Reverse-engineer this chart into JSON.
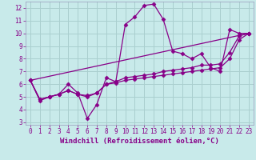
{
  "title": "",
  "xlabel": "Windchill (Refroidissement éolien,°C)",
  "ylabel": "",
  "bg_color": "#c8eaea",
  "grid_color": "#aacfcf",
  "line_color": "#880088",
  "xlim": [
    -0.5,
    23.5
  ],
  "ylim": [
    2.8,
    12.5
  ],
  "xticks": [
    0,
    1,
    2,
    3,
    4,
    5,
    6,
    7,
    8,
    9,
    10,
    11,
    12,
    13,
    14,
    15,
    16,
    17,
    18,
    19,
    20,
    21,
    22,
    23
  ],
  "yticks": [
    3,
    4,
    5,
    6,
    7,
    8,
    9,
    10,
    11,
    12
  ],
  "line1_x": [
    0,
    1,
    2,
    3,
    4,
    5,
    6,
    7,
    8,
    9,
    10,
    11,
    12,
    13,
    14,
    15,
    16,
    17,
    18,
    19,
    20,
    21,
    22,
    23
  ],
  "line1_y": [
    6.3,
    4.7,
    5.0,
    5.2,
    6.0,
    5.3,
    3.3,
    4.4,
    6.5,
    6.2,
    10.7,
    11.3,
    12.2,
    12.3,
    11.1,
    8.6,
    8.4,
    8.0,
    8.4,
    7.3,
    7.0,
    10.3,
    10.0,
    10.0
  ],
  "line2_x": [
    0,
    1,
    2,
    3,
    4,
    5,
    6,
    7,
    8,
    9,
    10,
    11,
    12,
    13,
    14,
    15,
    16,
    17,
    18,
    19,
    20,
    21,
    22,
    23
  ],
  "line2_y": [
    6.3,
    4.8,
    5.0,
    5.2,
    5.5,
    5.2,
    5.1,
    5.3,
    6.0,
    6.2,
    6.5,
    6.6,
    6.7,
    6.8,
    7.0,
    7.1,
    7.2,
    7.3,
    7.5,
    7.5,
    7.6,
    8.5,
    9.8,
    10.0
  ],
  "line3_x": [
    0,
    1,
    2,
    3,
    4,
    5,
    6,
    7,
    8,
    9,
    10,
    11,
    12,
    13,
    14,
    15,
    16,
    17,
    18,
    19,
    20,
    21,
    22,
    23
  ],
  "line3_y": [
    6.3,
    4.8,
    5.0,
    5.2,
    5.5,
    5.2,
    5.0,
    5.3,
    6.0,
    6.1,
    6.3,
    6.4,
    6.5,
    6.6,
    6.7,
    6.8,
    6.9,
    7.0,
    7.1,
    7.2,
    7.3,
    8.0,
    9.5,
    10.0
  ],
  "line4_x": [
    0,
    23
  ],
  "line4_y": [
    6.3,
    10.0
  ],
  "marker": "D",
  "markersize": 2.5,
  "linewidth": 0.9,
  "tick_fontsize": 5.5,
  "xlabel_fontsize": 6.5,
  "spine_color": "#9999bb"
}
